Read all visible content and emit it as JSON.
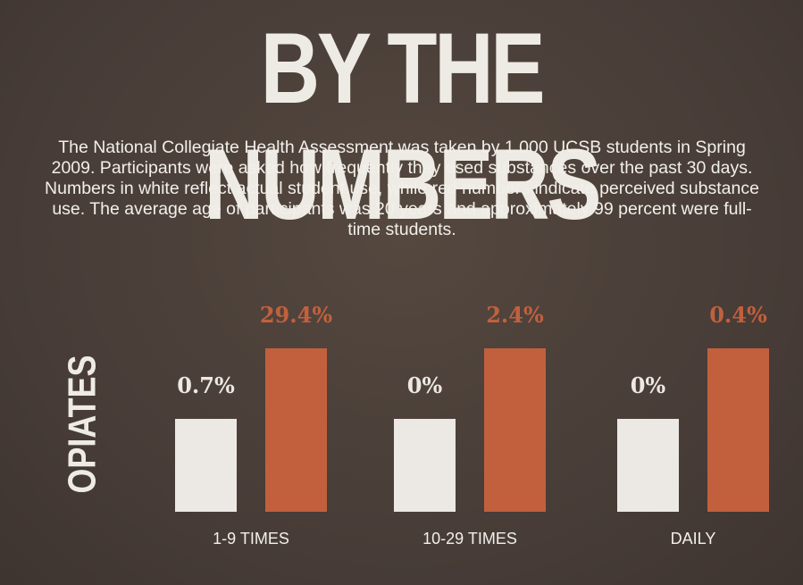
{
  "chart_data": {
    "type": "bar",
    "title": "BY THE NUMBERS",
    "subtitle": "The National Collegiate Health Assessment was taken by 1,000 UCSB students in Spring 2009. Participants were asked how frequently they used substances over the past 30 days. Numbers in white reflect actual student use, while red numbers indicate perceived substance use. The average age of participants was 20 years and approximately 99 percent were full-time students.",
    "y_label": "OPIATES",
    "categories": [
      "1-9 TIMES",
      "10-29 TIMES",
      "DAILY"
    ],
    "series": [
      {
        "color": "#ece8e3",
        "values": [
          0.7,
          0,
          0
        ],
        "value_labels": [
          "0.7%",
          "0%",
          "0%"
        ]
      },
      {
        "color": "#c2603d",
        "values": [
          29.4,
          2.4,
          0.4
        ],
        "value_labels": [
          "29.4%",
          "2.4%",
          "0.4%"
        ]
      }
    ]
  }
}
